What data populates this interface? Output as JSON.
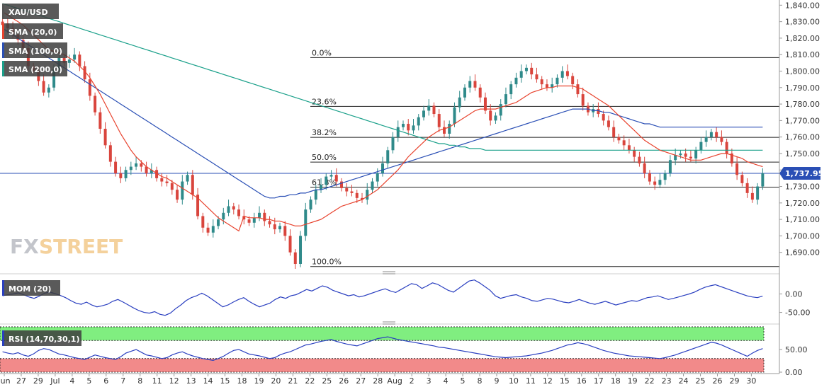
{
  "symbol": "XAU/USD",
  "watermark": {
    "prefix": "FX",
    "main": "STREET"
  },
  "legend": [
    {
      "label": "SMA (20,0)",
      "color": "#e8432e"
    },
    {
      "label": "SMA (100,0)",
      "color": "#2a4fb5"
    },
    {
      "label": "SMA (200,0)",
      "color": "#1aa08a"
    }
  ],
  "current_price": "1,737.95",
  "colors": {
    "bull": "#2f8a8a",
    "bear": "#d9453d",
    "sma20": "#e8432e",
    "sma100": "#2a4fb5",
    "sma200": "#1aa08a",
    "mom": "#2a3fc0",
    "rsi": "#2a3fc0",
    "rsi_over": "#80ee80",
    "rsi_under": "#f28a8a",
    "price_line": "#2a4fb5"
  },
  "chart_data": [
    {
      "type": "candlestick",
      "title": "XAU/USD",
      "y_ticks": [
        "1,690.00",
        "1,700.00",
        "1,710.00",
        "1,720.00",
        "1,730.00",
        "1,740.00",
        "1,750.00",
        "1,760.00",
        "1,770.00",
        "1,780.00",
        "1,790.00",
        "1,800.00",
        "1,810.00",
        "1,820.00",
        "1,830.00",
        "1,840.00"
      ],
      "ylim": [
        1680,
        1841
      ],
      "x_ticks": [
        "Jun",
        "27",
        "29",
        "Jul",
        "4",
        "5",
        "6",
        "7",
        "8",
        "11",
        "12",
        "13",
        "14",
        "15",
        "18",
        "19",
        "20",
        "21",
        "22",
        "25",
        "26",
        "27",
        "28",
        "Aug",
        "2",
        "3",
        "4",
        "5",
        "8",
        "9",
        "10",
        "11",
        "12",
        "15",
        "16",
        "17",
        "18",
        "19",
        "22",
        "23",
        "24",
        "25",
        "26",
        "29",
        "30"
      ],
      "closes": [
        1828,
        1826,
        1822,
        1819,
        1814,
        1803,
        1800,
        1794,
        1787,
        1790,
        1801,
        1808,
        1805,
        1807,
        1810,
        1803,
        1795,
        1785,
        1775,
        1765,
        1755,
        1745,
        1738,
        1735,
        1740,
        1742,
        1744,
        1742,
        1738,
        1740,
        1735,
        1733,
        1732,
        1728,
        1722,
        1733,
        1737,
        1725,
        1712,
        1705,
        1702,
        1706,
        1710,
        1714,
        1718,
        1716,
        1712,
        1710,
        1708,
        1711,
        1714,
        1709,
        1707,
        1704,
        1706,
        1700,
        1690,
        1683,
        1700,
        1716,
        1722,
        1728,
        1731,
        1736,
        1737,
        1733,
        1729,
        1727,
        1726,
        1723,
        1722,
        1728,
        1733,
        1738,
        1744,
        1752,
        1760,
        1766,
        1768,
        1764,
        1767,
        1772,
        1776,
        1779,
        1774,
        1766,
        1762,
        1768,
        1778,
        1784,
        1790,
        1794,
        1790,
        1784,
        1776,
        1770,
        1773,
        1780,
        1786,
        1792,
        1796,
        1800,
        1802,
        1798,
        1795,
        1792,
        1790,
        1792,
        1796,
        1800,
        1797,
        1792,
        1786,
        1779,
        1775,
        1777,
        1774,
        1770,
        1766,
        1760,
        1758,
        1755,
        1752,
        1748,
        1744,
        1738,
        1733,
        1731,
        1734,
        1738,
        1746,
        1749,
        1750,
        1748,
        1747,
        1752,
        1757,
        1760,
        1763,
        1760,
        1757,
        1750,
        1744,
        1737,
        1732,
        1726,
        1722,
        1730,
        1738
      ],
      "opens": [
        1830,
        1829,
        1826,
        1822,
        1819,
        1814,
        1803,
        1800,
        1794,
        1787,
        1790,
        1801,
        1808,
        1805,
        1807,
        1810,
        1803,
        1795,
        1785,
        1775,
        1765,
        1755,
        1745,
        1738,
        1735,
        1740,
        1742,
        1744,
        1742,
        1738,
        1740,
        1735,
        1733,
        1732,
        1728,
        1722,
        1733,
        1737,
        1725,
        1712,
        1705,
        1702,
        1706,
        1710,
        1714,
        1718,
        1716,
        1712,
        1710,
        1708,
        1711,
        1714,
        1709,
        1707,
        1704,
        1706,
        1700,
        1690,
        1683,
        1700,
        1716,
        1722,
        1728,
        1731,
        1736,
        1737,
        1733,
        1729,
        1727,
        1726,
        1723,
        1722,
        1728,
        1733,
        1738,
        1744,
        1752,
        1760,
        1766,
        1768,
        1764,
        1767,
        1772,
        1776,
        1779,
        1774,
        1766,
        1762,
        1768,
        1778,
        1784,
        1790,
        1794,
        1790,
        1784,
        1776,
        1770,
        1773,
        1780,
        1786,
        1792,
        1796,
        1800,
        1802,
        1798,
        1795,
        1792,
        1790,
        1792,
        1796,
        1800,
        1797,
        1792,
        1786,
        1779,
        1775,
        1777,
        1774,
        1770,
        1766,
        1760,
        1758,
        1755,
        1752,
        1748,
        1744,
        1738,
        1733,
        1731,
        1734,
        1738,
        1746,
        1749,
        1750,
        1748,
        1747,
        1752,
        1757,
        1760,
        1763,
        1760,
        1757,
        1750,
        1744,
        1737,
        1732,
        1726,
        1722,
        1730
      ],
      "sma20": [
        1836,
        1834,
        1832,
        1830,
        1828,
        1825,
        1822,
        1819,
        1816,
        1813,
        1812,
        1811,
        1810,
        1808,
        1806,
        1803,
        1800,
        1796,
        1791,
        1786,
        1780,
        1774,
        1768,
        1762,
        1757,
        1752,
        1748,
        1745,
        1742,
        1740,
        1738,
        1736,
        1735,
        1733,
        1731,
        1729,
        1727,
        1725,
        1723,
        1720,
        1717,
        1714,
        1711,
        1709,
        1707,
        1705,
        1703,
        1712,
        1711,
        1711,
        1711,
        1710,
        1710,
        1709,
        1709,
        1708,
        1707,
        1706,
        1706,
        1707,
        1708,
        1709,
        1710,
        1712,
        1714,
        1716,
        1718,
        1719,
        1720,
        1721,
        1722,
        1724,
        1726,
        1728,
        1731,
        1734,
        1737,
        1740,
        1744,
        1748,
        1751,
        1754,
        1757,
        1760,
        1762,
        1764,
        1765,
        1766,
        1768,
        1770,
        1772,
        1774,
        1776,
        1777,
        1777,
        1777,
        1777,
        1778,
        1779,
        1780,
        1781,
        1783,
        1785,
        1787,
        1788,
        1789,
        1790,
        1790,
        1791,
        1791,
        1791,
        1791,
        1790,
        1789,
        1787,
        1785,
        1783,
        1781,
        1779,
        1776,
        1773,
        1770,
        1767,
        1764,
        1761,
        1758,
        1756,
        1754,
        1752,
        1751,
        1750,
        1749,
        1748,
        1747,
        1746,
        1746,
        1746,
        1747,
        1748,
        1749,
        1750,
        1750,
        1749,
        1748,
        1747,
        1745,
        1744,
        1743,
        1742
      ],
      "sma100": [
        1826,
        1824,
        1822,
        1820,
        1818,
        1816,
        1814,
        1812,
        1810,
        1808,
        1806,
        1804,
        1802,
        1800,
        1798,
        1796,
        1794,
        1792,
        1790,
        1788,
        1786,
        1784,
        1782,
        1780,
        1778,
        1776,
        1774,
        1772,
        1770,
        1768,
        1766,
        1764,
        1762,
        1760,
        1758,
        1756,
        1754,
        1752,
        1750,
        1748,
        1746,
        1744,
        1742,
        1740,
        1738,
        1736,
        1734,
        1732,
        1730,
        1728,
        1726,
        1724,
        1723,
        1723,
        1724,
        1724,
        1725,
        1725,
        1726,
        1726,
        1727,
        1728,
        1728,
        1729,
        1730,
        1731,
        1732,
        1733,
        1734,
        1735,
        1736,
        1737,
        1738,
        1739,
        1740,
        1741,
        1742,
        1743,
        1744,
        1745,
        1746,
        1747,
        1748,
        1749,
        1750,
        1751,
        1752,
        1753,
        1754,
        1755,
        1756,
        1757,
        1758,
        1759,
        1760,
        1761,
        1762,
        1763,
        1764,
        1765,
        1766,
        1767,
        1768,
        1769,
        1770,
        1771,
        1772,
        1773,
        1774,
        1775,
        1776,
        1777,
        1777,
        1777,
        1777,
        1776,
        1776,
        1775,
        1775,
        1774,
        1773,
        1772,
        1771,
        1770,
        1769,
        1768,
        1768,
        1767,
        1766,
        1766,
        1766,
        1766,
        1766,
        1766,
        1766,
        1766,
        1766,
        1766,
        1766,
        1766,
        1766,
        1766,
        1766,
        1766,
        1766,
        1766,
        1766,
        1766,
        1766
      ],
      "sma200": [
        1841,
        1840,
        1839,
        1838,
        1837,
        1836,
        1835,
        1834,
        1833,
        1832,
        1831,
        1830,
        1829,
        1828,
        1827,
        1826,
        1825,
        1824,
        1823,
        1822,
        1821,
        1820,
        1819,
        1818,
        1817,
        1816,
        1815,
        1814,
        1813,
        1812,
        1811,
        1810,
        1809,
        1808,
        1807,
        1806,
        1805,
        1804,
        1803,
        1802,
        1801,
        1800,
        1799,
        1798,
        1797,
        1796,
        1795,
        1794,
        1793,
        1792,
        1791,
        1790,
        1789,
        1788,
        1787,
        1786,
        1785,
        1784,
        1783,
        1782,
        1781,
        1780,
        1779,
        1778,
        1777,
        1776,
        1775,
        1774,
        1773,
        1772,
        1771,
        1770,
        1769,
        1768,
        1767,
        1766,
        1765,
        1764,
        1763,
        1762,
        1761,
        1760,
        1759,
        1758,
        1757,
        1756,
        1756,
        1755,
        1755,
        1754,
        1754,
        1753,
        1753,
        1753,
        1752,
        1752,
        1752,
        1752,
        1752,
        1752,
        1752,
        1752,
        1752,
        1752,
        1752,
        1752,
        1752,
        1752,
        1752,
        1752,
        1752,
        1752,
        1752,
        1752,
        1752,
        1752,
        1752,
        1752,
        1752,
        1752,
        1752,
        1752,
        1752,
        1752,
        1752,
        1752,
        1752,
        1752,
        1752,
        1752,
        1752,
        1752,
        1752,
        1752,
        1752,
        1752,
        1752,
        1752,
        1752,
        1752,
        1752,
        1752,
        1752,
        1752,
        1752,
        1752,
        1752,
        1752,
        1752
      ],
      "fibonacci": [
        {
          "label": "0.0%",
          "value": 1808.2
        },
        {
          "label": "23.6%",
          "value": 1778.6
        },
        {
          "label": "38.2%",
          "value": 1759.8
        },
        {
          "label": "50.0%",
          "value": 1744.8
        },
        {
          "label": "61.8%",
          "value": 1729.6
        },
        {
          "label": "100.0%",
          "value": 1681.4
        }
      ]
    },
    {
      "type": "line",
      "title": "MOM (20)",
      "y_ticks": [
        "0.00",
        "-50.00"
      ],
      "ylim": [
        -70,
        45
      ],
      "values": [
        -5,
        -2,
        0,
        3,
        -2,
        -8,
        -12,
        -6,
        2,
        5,
        1,
        -4,
        -10,
        -18,
        -25,
        -28,
        -22,
        -30,
        -35,
        -32,
        -28,
        -20,
        -15,
        -22,
        -30,
        -38,
        -45,
        -50,
        -52,
        -48,
        -55,
        -58,
        -52,
        -40,
        -30,
        -18,
        -10,
        -5,
        2,
        -5,
        -15,
        -25,
        -35,
        -30,
        -22,
        -15,
        -10,
        -20,
        -28,
        -35,
        -30,
        -25,
        -15,
        -8,
        -12,
        -5,
        -2,
        5,
        12,
        8,
        15,
        22,
        18,
        10,
        5,
        0,
        -5,
        -2,
        -8,
        -5,
        0,
        5,
        10,
        14,
        8,
        4,
        12,
        20,
        28,
        25,
        15,
        22,
        30,
        26,
        18,
        10,
        5,
        15,
        25,
        35,
        38,
        30,
        20,
        10,
        -5,
        -12,
        -8,
        -4,
        -2,
        -8,
        -12,
        -18,
        -20,
        -16,
        -12,
        -14,
        -18,
        -22,
        -24,
        -20,
        -15,
        -20,
        -25,
        -28,
        -24,
        -20,
        -25,
        -30,
        -26,
        -22,
        -18,
        -20,
        -15,
        -10,
        -8,
        -5,
        -10,
        -15,
        -12,
        -8,
        -4,
        0,
        5,
        12,
        18,
        22,
        25,
        20,
        15,
        10,
        5,
        0,
        -5,
        -8,
        -10,
        -6
      ],
      "color": "#2a3fc0"
    },
    {
      "type": "line",
      "title": "RSI (14,70,30,1)",
      "y_ticks": [
        "50.00",
        "0.00"
      ],
      "ylim": [
        0,
        100
      ],
      "overbought": 70,
      "oversold": 30,
      "values": [
        45,
        42,
        40,
        43,
        38,
        35,
        40,
        48,
        52,
        50,
        45,
        40,
        38,
        35,
        32,
        30,
        28,
        33,
        38,
        35,
        32,
        30,
        28,
        34,
        42,
        46,
        50,
        44,
        38,
        36,
        33,
        30,
        32,
        38,
        42,
        45,
        40,
        36,
        33,
        30,
        28,
        26,
        30,
        35,
        42,
        48,
        50,
        45,
        40,
        38,
        36,
        33,
        30,
        32,
        38,
        42,
        45,
        50,
        55,
        60,
        62,
        65,
        68,
        70,
        72,
        68,
        65,
        62,
        60,
        58,
        62,
        66,
        70,
        74,
        76,
        78,
        75,
        72,
        70,
        68,
        66,
        64,
        62,
        60,
        58,
        55,
        54,
        52,
        50,
        48,
        46,
        44,
        42,
        40,
        38,
        36,
        34,
        33,
        32,
        33,
        34,
        35,
        36,
        38,
        40,
        42,
        45,
        48,
        52,
        56,
        60,
        62,
        65,
        63,
        60,
        56,
        52,
        48,
        45,
        42,
        40,
        38,
        36,
        35,
        34,
        33,
        32,
        31,
        30,
        32,
        35,
        38,
        42,
        46,
        50,
        54,
        58,
        62,
        66,
        64,
        60,
        55,
        50,
        45,
        40,
        35,
        42,
        48,
        52
      ],
      "color": "#2a3fc0"
    }
  ]
}
